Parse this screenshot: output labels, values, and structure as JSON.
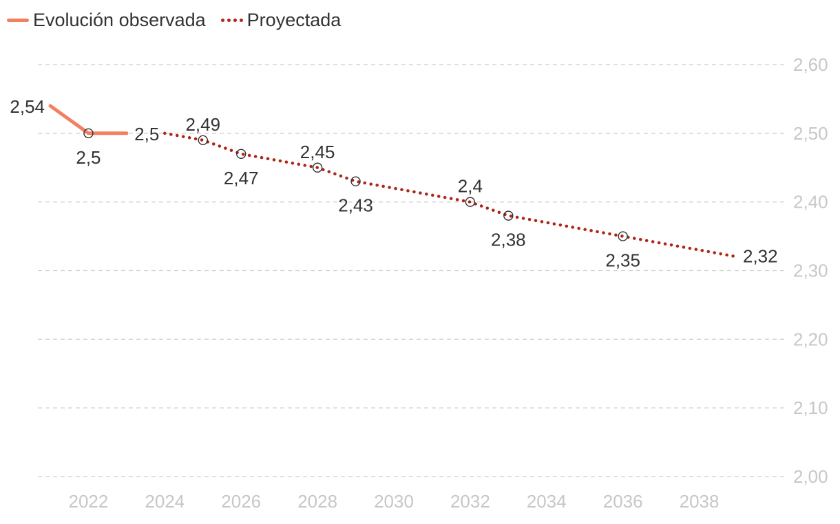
{
  "legend": {
    "observed": "Evolución observada",
    "projected": "Proyectada"
  },
  "colors": {
    "observed": "#f47f5f",
    "projected": "#b02418",
    "grid": "#cfcfcf",
    "tick": "#c7c7c7",
    "label": "#333333"
  },
  "chart_data": {
    "type": "line",
    "title": "",
    "xlabel": "",
    "ylabel": "",
    "xlim": [
      2021,
      2039
    ],
    "ylim": [
      2.0,
      2.6
    ],
    "x_ticks": [
      2022,
      2024,
      2026,
      2028,
      2030,
      2032,
      2034,
      2036,
      2038
    ],
    "y_ticks": [
      "2,00",
      "2,10",
      "2,20",
      "2,30",
      "2,40",
      "2,50",
      "2,60"
    ],
    "y_tick_values": [
      2.0,
      2.1,
      2.2,
      2.3,
      2.4,
      2.5,
      2.6
    ],
    "y_axis_side": "right",
    "grid": true,
    "legend_position": "top-left",
    "series": [
      {
        "name": "Evolución observada",
        "style": "solid",
        "x": [
          2021,
          2022,
          2023
        ],
        "values": [
          2.54,
          2.5,
          2.5
        ]
      },
      {
        "name": "Proyectada",
        "style": "dotted",
        "x": [
          2024,
          2025,
          2026,
          2027,
          2028,
          2029,
          2030,
          2031,
          2032,
          2033,
          2034,
          2035,
          2036,
          2037,
          2038,
          2039
        ],
        "values": [
          2.5,
          2.49,
          2.47,
          2.46,
          2.45,
          2.43,
          2.42,
          2.41,
          2.4,
          2.38,
          2.37,
          2.36,
          2.35,
          2.34,
          2.33,
          2.32
        ]
      }
    ],
    "markers": [
      {
        "x": 2022,
        "value": 2.5
      },
      {
        "x": 2025,
        "value": 2.49
      },
      {
        "x": 2026,
        "value": 2.47
      },
      {
        "x": 2028,
        "value": 2.45
      },
      {
        "x": 2029,
        "value": 2.43
      },
      {
        "x": 2032,
        "value": 2.4
      },
      {
        "x": 2033,
        "value": 2.38
      },
      {
        "x": 2036,
        "value": 2.35
      }
    ],
    "data_labels": [
      {
        "x": 2021,
        "value": 2.54,
        "text": "2,54",
        "pos": "left"
      },
      {
        "x": 2022,
        "value": 2.5,
        "text": "2,5",
        "pos": "below"
      },
      {
        "x": 2024,
        "value": 2.5,
        "text": "2,5",
        "pos": "left"
      },
      {
        "x": 2025,
        "value": 2.49,
        "text": "2,49",
        "pos": "above"
      },
      {
        "x": 2026,
        "value": 2.47,
        "text": "2,47",
        "pos": "below"
      },
      {
        "x": 2028,
        "value": 2.45,
        "text": "2,45",
        "pos": "above"
      },
      {
        "x": 2029,
        "value": 2.43,
        "text": "2,43",
        "pos": "below"
      },
      {
        "x": 2032,
        "value": 2.4,
        "text": "2,4",
        "pos": "above"
      },
      {
        "x": 2033,
        "value": 2.38,
        "text": "2,38",
        "pos": "below"
      },
      {
        "x": 2036,
        "value": 2.35,
        "text": "2,35",
        "pos": "below"
      },
      {
        "x": 2039,
        "value": 2.32,
        "text": "2,32",
        "pos": "right"
      }
    ]
  }
}
